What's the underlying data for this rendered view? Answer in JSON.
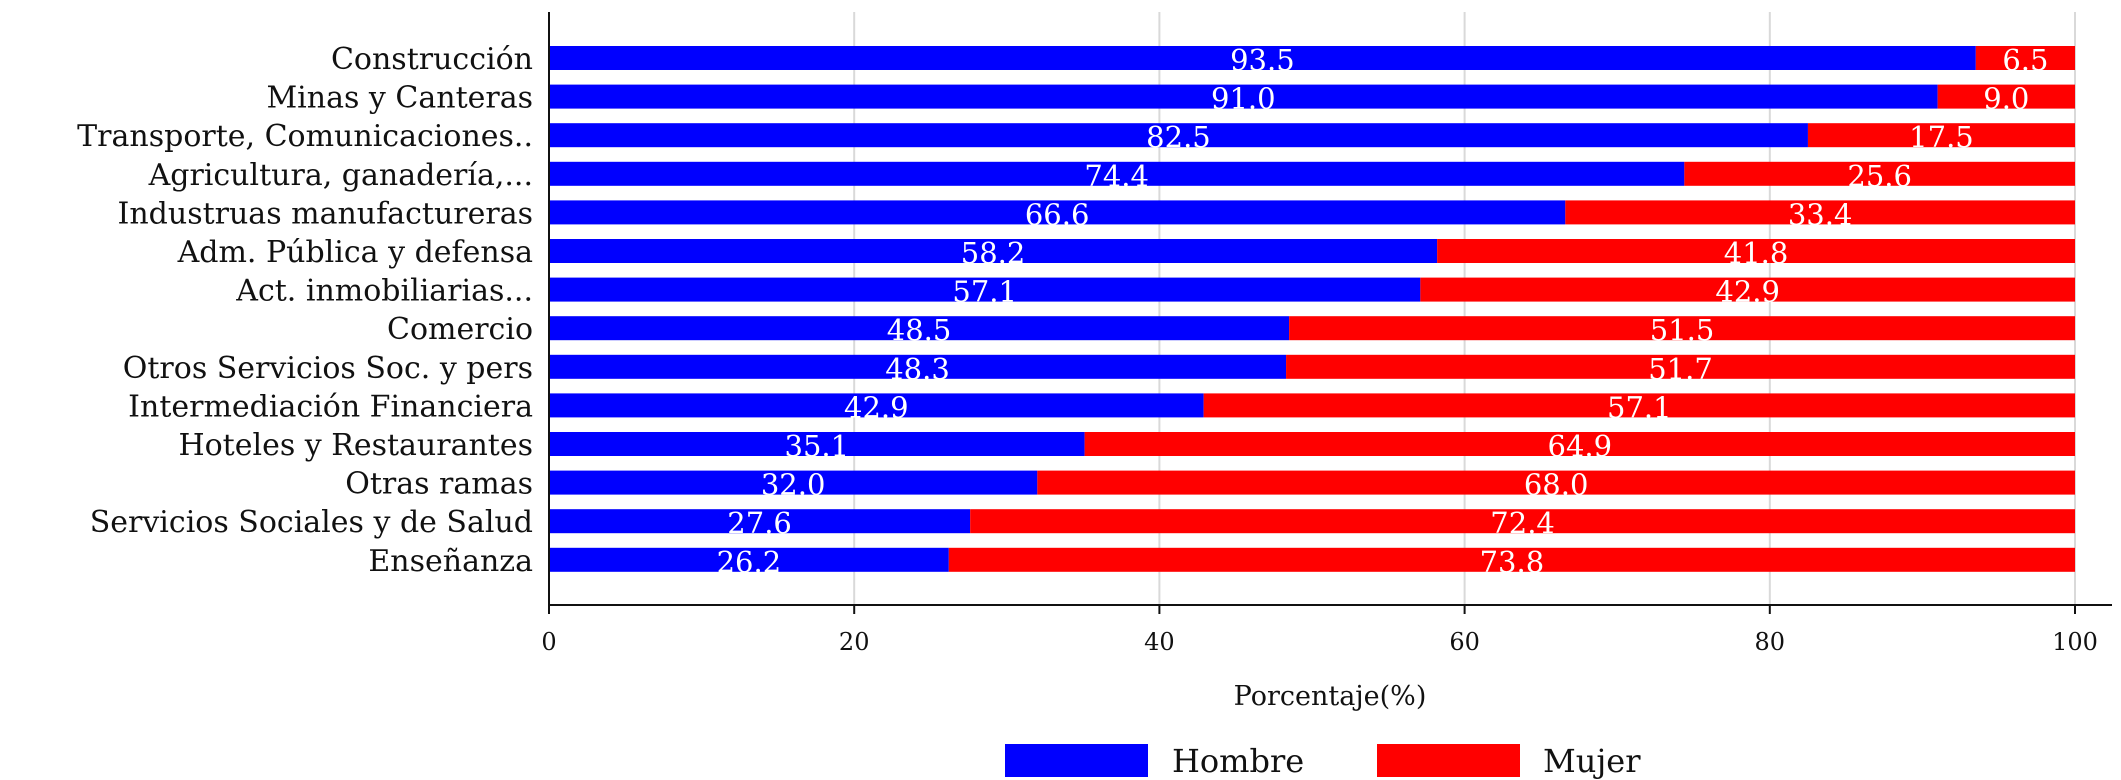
{
  "chart_data": {
    "type": "bar",
    "orientation": "horizontal",
    "stacked": true,
    "categories": [
      "Construcción",
      "Minas y Canteras",
      "Transporte, Comunicaciones..",
      "Agricultura, ganadería,...",
      "Industruas manufactureras",
      "Adm. Pública y defensa",
      "Act. inmobiliarias...",
      "Comercio",
      "Otros Servicios Soc. y pers",
      "Intermediación Financiera",
      "Hoteles y Restaurantes",
      "Otras ramas",
      "Servicios Sociales y de Salud",
      "Enseñanza"
    ],
    "series": [
      {
        "name": "Hombre",
        "color": "#0000ff",
        "values": [
          93.5,
          91.0,
          82.5,
          74.4,
          66.6,
          58.2,
          57.1,
          48.5,
          48.3,
          42.9,
          35.1,
          32.0,
          27.6,
          26.2
        ]
      },
      {
        "name": "Mujer",
        "color": "#ff0000",
        "values": [
          6.5,
          9.0,
          17.5,
          25.6,
          33.4,
          41.8,
          42.9,
          51.5,
          51.7,
          57.1,
          64.9,
          68.0,
          72.4,
          73.8
        ]
      }
    ],
    "xlabel": "Porcentaje(%)",
    "ylabel": "",
    "xlim": [
      0,
      100
    ],
    "xticks": [
      0,
      20,
      40,
      60,
      80,
      100
    ],
    "grid": true,
    "legend": "bottom",
    "data_labels": true
  }
}
